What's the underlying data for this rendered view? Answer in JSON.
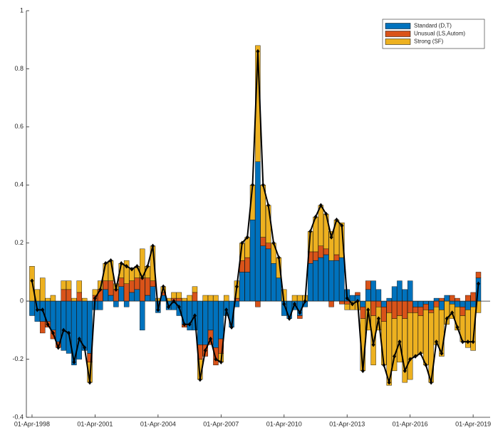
{
  "chart_data": {
    "type": "bar",
    "stacked": true,
    "x": [
      1998.25,
      1998.5,
      1998.75,
      1999,
      1999.25,
      1999.5,
      1999.75,
      2000,
      2000.25,
      2000.5,
      2000.75,
      2001,
      2001.25,
      2001.5,
      2001.75,
      2002,
      2002.25,
      2002.5,
      2002.75,
      2003,
      2003.25,
      2003.5,
      2003.75,
      2004,
      2004.25,
      2004.5,
      2004.75,
      2005,
      2005.25,
      2005.5,
      2005.75,
      2006,
      2006.25,
      2006.5,
      2006.75,
      2007,
      2007.25,
      2007.5,
      2007.75,
      2008,
      2008.25,
      2008.5,
      2008.75,
      2009,
      2009.25,
      2009.5,
      2009.75,
      2010,
      2010.25,
      2010.5,
      2010.75,
      2011,
      2011.25,
      2011.5,
      2011.75,
      2012,
      2012.25,
      2012.5,
      2012.75,
      2013,
      2013.25,
      2013.5,
      2013.75,
      2014,
      2014.25,
      2014.5,
      2014.75,
      2015,
      2015.25,
      2015.5,
      2015.75,
      2016,
      2016.25,
      2016.5,
      2016.75,
      2017,
      2017.25,
      2017.5,
      2017.75,
      2018,
      2018.25,
      2018.5,
      2018.75,
      2019,
      2019.25,
      2019.5
    ],
    "series": [
      {
        "name": "Standard (D,T)",
        "color": "#0072BD",
        "values": [
          -0.05,
          -0.07,
          -0.07,
          -0.07,
          -0.1,
          -0.14,
          -0.17,
          -0.18,
          -0.22,
          -0.2,
          -0.17,
          -0.18,
          -0.03,
          -0.03,
          0.04,
          0.02,
          -0.02,
          0.05,
          -0.02,
          0.03,
          0.04,
          -0.1,
          0.02,
          0.05,
          -0.04,
          0.02,
          -0.03,
          -0.03,
          -0.05,
          -0.08,
          -0.1,
          -0.1,
          -0.15,
          -0.15,
          -0.1,
          -0.16,
          -0.13,
          -0.05,
          -0.09,
          -0.02,
          0.1,
          0.1,
          0.28,
          0.48,
          0.19,
          0.18,
          0.13,
          0.08,
          -0.05,
          -0.06,
          -0.03,
          -0.05,
          -0.02,
          0.13,
          0.14,
          0.15,
          0.16,
          0.14,
          0.14,
          0.15,
          0.04,
          0.02,
          0.02,
          -0.02,
          0.04,
          0.07,
          0.04,
          -0.02,
          0.01,
          0.05,
          0.07,
          0.04,
          0.07,
          -0.02,
          -0.02,
          -0.01,
          -0.03,
          0.01,
          -0.03,
          0.02,
          -0.01,
          -0.02,
          -0.02,
          -0.03,
          -0.02,
          0.08
        ]
      },
      {
        "name": "Unusual (LS,Autom)",
        "color": "#D95319",
        "values": [
          0,
          0,
          -0.04,
          -0.02,
          -0.03,
          -0.02,
          0.04,
          0.04,
          0,
          0.03,
          0,
          -0.03,
          0.02,
          0.04,
          0.03,
          0.05,
          0.04,
          0.03,
          0.06,
          0.04,
          0.04,
          0.08,
          0.06,
          0.02,
          0,
          0.01,
          0,
          0.01,
          0.01,
          -0.01,
          0,
          0.03,
          -0.05,
          -0.04,
          -0.05,
          -0.06,
          -0.05,
          0,
          0,
          0.01,
          0.04,
          0.05,
          0,
          -0.02,
          0.03,
          0.02,
          0,
          0,
          0,
          0,
          0,
          -0.01,
          0,
          0.04,
          0.03,
          0.04,
          0.02,
          -0.02,
          0.02,
          -0.01,
          -0.01,
          0,
          0.01,
          -0.04,
          0.03,
          -0.05,
          -0.02,
          -0.05,
          -0.04,
          -0.06,
          -0.05,
          -0.06,
          -0.04,
          -0.02,
          -0.03,
          -0.02,
          -0.01,
          -0.02,
          0.01,
          0,
          0.02,
          0.01,
          -0.03,
          0.02,
          0.03,
          0.02
        ]
      },
      {
        "name": "Strong (SF)",
        "color": "#EDB120",
        "values": [
          0.12,
          0.04,
          0.08,
          0.01,
          0.02,
          0,
          0.03,
          0.03,
          0.01,
          0.04,
          0.01,
          -0.07,
          0.02,
          0.03,
          0.06,
          0.07,
          0.02,
          0.05,
          0.08,
          0.04,
          0.04,
          0.1,
          0.04,
          0.12,
          0.01,
          0.02,
          0.01,
          0.02,
          0.02,
          0.01,
          0.02,
          0.02,
          -0.07,
          0.02,
          0.02,
          0.02,
          -0.03,
          0.02,
          0,
          0.06,
          0.06,
          0.07,
          0.12,
          0.4,
          0.18,
          0.13,
          0.07,
          0.07,
          0.04,
          0,
          0.02,
          0.02,
          0.02,
          0.07,
          0.12,
          0.14,
          0.12,
          0.1,
          0.12,
          0.12,
          -0.02,
          -0.03,
          -0.03,
          -0.18,
          -0.1,
          -0.17,
          -0.08,
          -0.15,
          -0.25,
          -0.18,
          -0.16,
          -0.22,
          -0.23,
          -0.15,
          -0.13,
          -0.19,
          -0.24,
          -0.13,
          -0.16,
          -0.08,
          -0.05,
          -0.08,
          -0.09,
          -0.13,
          -0.15,
          -0.04
        ]
      }
    ],
    "line_color": "#000000",
    "xlim": [
      1997.98,
      2020.06
    ],
    "xticks": [
      {
        "value": 1998.25,
        "label": "01-Apr-1998"
      },
      {
        "value": 2001.25,
        "label": "01-Apr-2001"
      },
      {
        "value": 2004.25,
        "label": "01-Apr-2004"
      },
      {
        "value": 2007.25,
        "label": "01-Apr-2007"
      },
      {
        "value": 2010.25,
        "label": "01-Apr-2010"
      },
      {
        "value": 2013.25,
        "label": "01-Apr-2013"
      },
      {
        "value": 2016.25,
        "label": "01-Apr-2016"
      },
      {
        "value": 2019.25,
        "label": "01-Apr-2019"
      }
    ],
    "ylim": [
      -0.4,
      1
    ],
    "yticks": [
      -0.4,
      -0.2,
      0,
      0.2,
      0.4,
      0.6,
      0.8,
      1
    ],
    "grid": false,
    "legend": "northeast"
  }
}
